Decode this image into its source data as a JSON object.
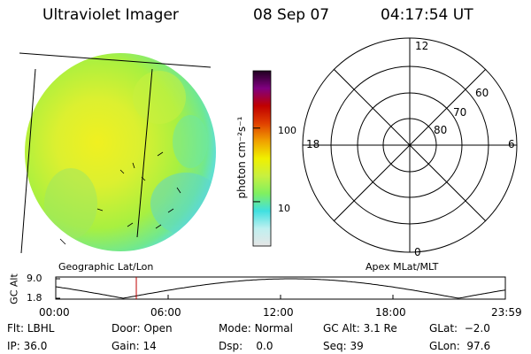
{
  "header": {
    "instrument": "Ultraviolet Imager",
    "date": "08 Sep 07",
    "time": "04:17:54 UT"
  },
  "colorbar": {
    "unit_label": "photon cm⁻²s⁻¹",
    "tick_labels": [
      "100",
      "10"
    ],
    "ticks": [
      100,
      10
    ],
    "range": [
      2.5,
      600
    ],
    "scale": "log",
    "colors": [
      "#e6e6e6",
      "#bff0f0",
      "#40e0e0",
      "#80f060",
      "#c8f040",
      "#f0f000",
      "#f0a000",
      "#e04000",
      "#c00000",
      "#800080",
      "#200020"
    ]
  },
  "panels": {
    "left_label": "Geographic Lat/Lon",
    "right_label": "Apex  MLat/MLT"
  },
  "polar": {
    "hour_labels": [
      "12",
      "18",
      "6",
      "0"
    ],
    "lat_labels": [
      "60",
      "70",
      "80"
    ]
  },
  "altitude_plot": {
    "ylabel": "GC Alt",
    "y_ticks": [
      "9.0",
      "1.8"
    ],
    "x_ticks": [
      "00:00",
      "06:00",
      "12:00",
      "18:00",
      "23:59"
    ],
    "current_time_hours": 4.3
  },
  "info": {
    "filter": {
      "label": "Flt:",
      "value": "LBHL"
    },
    "ip": {
      "label": "IP:",
      "value": "36.0"
    },
    "door": {
      "label": "Door:",
      "value": "Open"
    },
    "gain": {
      "label": "Gain:",
      "value": "14"
    },
    "mode": {
      "label": "Mode:",
      "value": "Normal"
    },
    "dsp": {
      "label": "Dsp:",
      "value": "0.0"
    },
    "gc_alt": {
      "label": "GC Alt:",
      "value": "3.1 Re"
    },
    "seq": {
      "label": "Seq:",
      "value": "39"
    },
    "glat": {
      "label": "GLat:",
      "value": "−2.0"
    },
    "glon": {
      "label": "GLon:",
      "value": "97.6"
    }
  },
  "colors": {
    "marker": "#c00000",
    "disk_base": "#b8f040"
  }
}
